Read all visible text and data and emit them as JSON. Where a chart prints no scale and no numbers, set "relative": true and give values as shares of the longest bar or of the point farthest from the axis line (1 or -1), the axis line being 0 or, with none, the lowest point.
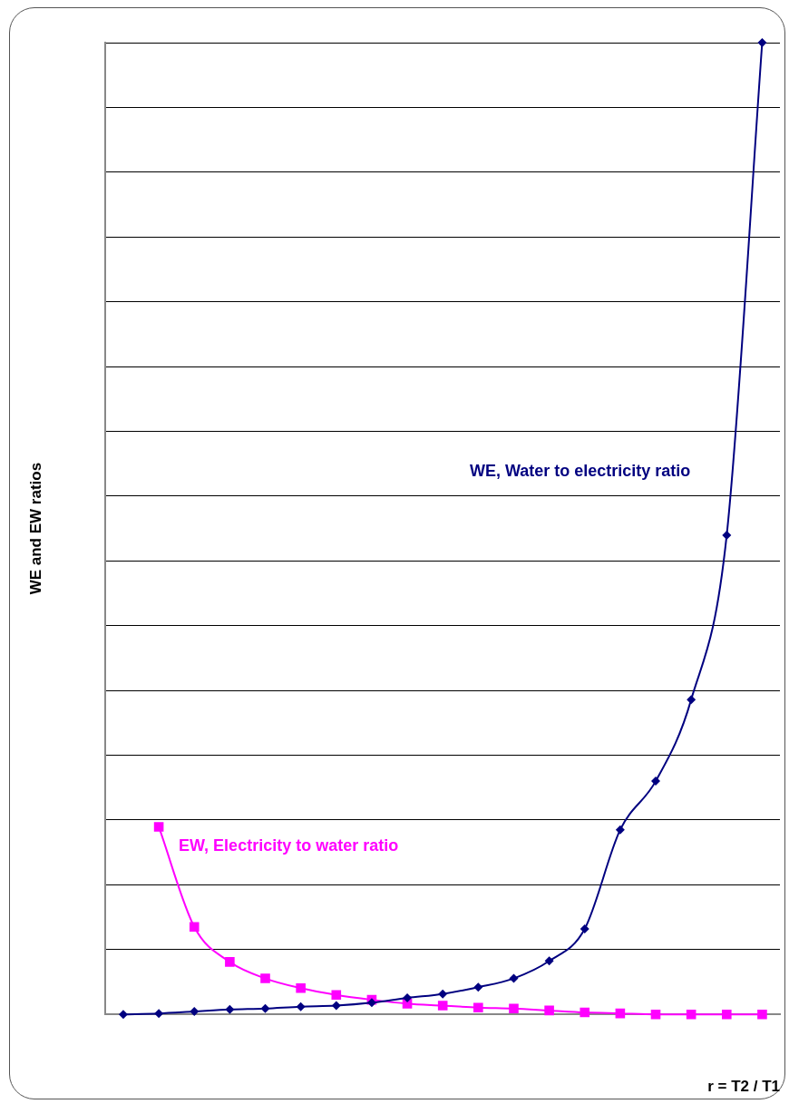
{
  "chart_data": {
    "type": "line",
    "relative": true,
    "xlabel": "r = T2 / T1",
    "ylabel": "WE and EW ratios",
    "grid": "y",
    "legend": false,
    "categories": [
      null,
      null,
      null,
      null,
      null,
      null,
      null,
      null,
      null,
      null,
      null,
      null,
      null,
      null,
      null,
      null,
      null,
      null,
      null
    ],
    "series": [
      {
        "name": "WE, Water to electricity ratio",
        "color": "#000080",
        "marker": "diamond",
        "values": [
          0,
          0.001,
          0.003,
          0.005,
          0.006,
          0.008,
          0.009,
          0.012,
          0.017,
          0.021,
          0.028,
          0.037,
          0.055,
          0.088,
          0.19,
          0.24,
          0.324,
          0.493,
          1
        ]
      },
      {
        "name": "EW, Electricity to water ratio",
        "color": "#ff00ff",
        "marker": "square",
        "values": [
          null,
          0.193,
          0.09,
          0.054,
          0.037,
          0.027,
          0.02,
          0.015,
          0.011,
          0.009,
          0.007,
          0.006,
          0.004,
          0.002,
          0.001,
          0,
          0,
          0,
          0
        ]
      }
    ]
  }
}
